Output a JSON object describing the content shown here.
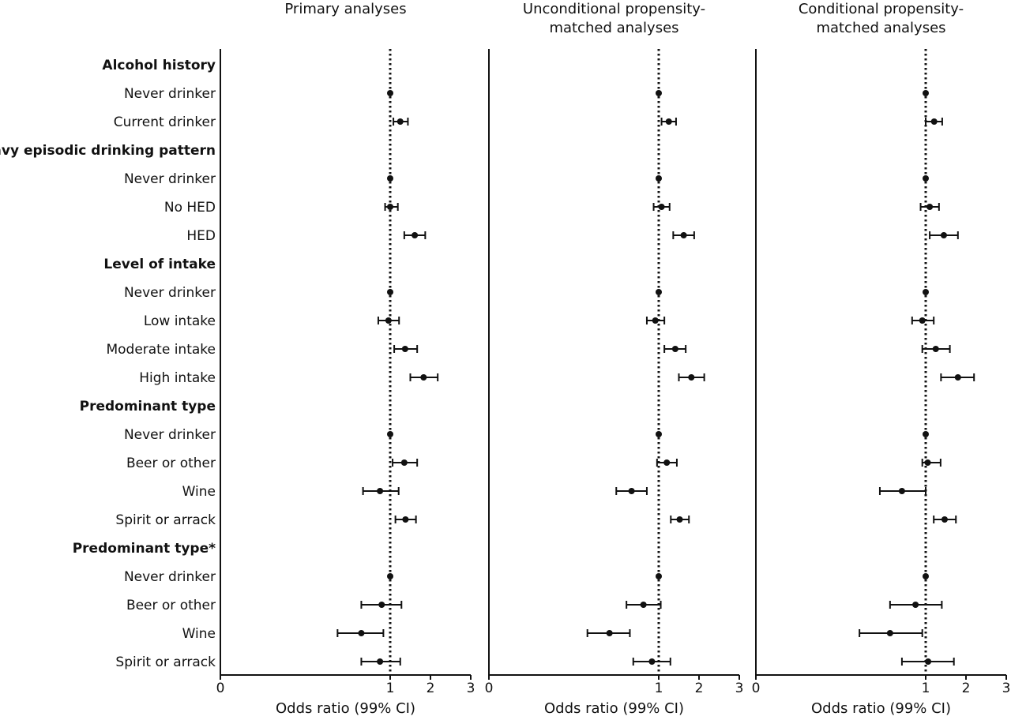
{
  "chart_data": {
    "type": "forest",
    "xlabel": "Odds ratio (99% CI)",
    "xticks": [
      0,
      1,
      2,
      3
    ],
    "xlim": [
      0,
      3
    ],
    "reference_line": 1,
    "grid": false,
    "rows": [
      {
        "label": "Alcohol history",
        "header": true
      },
      {
        "label": "Never drinker"
      },
      {
        "label": "Current drinker"
      },
      {
        "label": "Heavy episodic drinking pattern",
        "header": true
      },
      {
        "label": "Never drinker"
      },
      {
        "label": "No HED"
      },
      {
        "label": "HED"
      },
      {
        "label": "Level of intake",
        "header": true
      },
      {
        "label": "Never drinker"
      },
      {
        "label": "Low intake"
      },
      {
        "label": "Moderate intake"
      },
      {
        "label": "High intake"
      },
      {
        "label": "Predominant type",
        "header": true
      },
      {
        "label": "Never drinker"
      },
      {
        "label": "Beer or other"
      },
      {
        "label": "Wine"
      },
      {
        "label": "Spirit or arrack"
      },
      {
        "label": "Predominant type*",
        "header": true
      },
      {
        "label": "Never drinker"
      },
      {
        "label": "Beer or other"
      },
      {
        "label": "Wine"
      },
      {
        "label": "Spirit or arrack"
      }
    ],
    "panels": [
      {
        "title": [
          "Primary analyses"
        ],
        "estimates": [
          null,
          [
            1,
            1,
            1
          ],
          [
            1.25,
            1.08,
            1.44
          ],
          null,
          [
            1,
            1,
            1
          ],
          [
            1.0,
            0.97,
            1.19
          ],
          [
            1.61,
            1.35,
            1.87
          ],
          null,
          [
            1,
            1,
            1
          ],
          [
            0.99,
            0.93,
            1.22
          ],
          [
            1.37,
            1.1,
            1.67
          ],
          [
            1.83,
            1.5,
            2.18
          ],
          null,
          [
            1,
            1,
            1
          ],
          [
            1.35,
            1.06,
            1.67
          ],
          [
            0.94,
            0.84,
            1.21
          ],
          [
            1.38,
            1.13,
            1.64
          ],
          null,
          [
            1,
            1,
            1
          ],
          [
            0.95,
            0.83,
            1.28
          ],
          [
            0.83,
            0.69,
            0.96
          ],
          [
            0.94,
            0.83,
            1.25
          ]
        ]
      },
      {
        "title": [
          "Unconditional propensity-",
          "matched analyses"
        ],
        "estimates": [
          null,
          [
            1,
            1,
            1
          ],
          [
            1.25,
            1.07,
            1.43
          ],
          null,
          [
            1,
            1,
            1
          ],
          [
            1.07,
            0.97,
            1.27
          ],
          [
            1.62,
            1.36,
            1.88
          ],
          null,
          [
            1,
            1,
            1
          ],
          [
            0.98,
            0.93,
            1.14
          ],
          [
            1.41,
            1.14,
            1.67
          ],
          [
            1.81,
            1.5,
            2.13
          ],
          null,
          [
            1,
            1,
            1
          ],
          [
            1.2,
            0.99,
            1.45
          ],
          [
            0.84,
            0.75,
            0.93
          ],
          [
            1.52,
            1.3,
            1.75
          ],
          null,
          [
            1,
            1,
            1
          ],
          [
            0.91,
            0.81,
            1.05
          ],
          [
            0.71,
            0.58,
            0.83
          ],
          [
            0.96,
            0.85,
            1.29
          ]
        ]
      },
      {
        "title": [
          "Conditional propensity-",
          "matched analyses"
        ],
        "estimates": [
          null,
          [
            1,
            1,
            1
          ],
          [
            1.21,
            1.0,
            1.41
          ],
          null,
          [
            1,
            1,
            1
          ],
          [
            1.1,
            0.97,
            1.33
          ],
          [
            1.45,
            1.1,
            1.8
          ],
          null,
          [
            1,
            1,
            1
          ],
          [
            0.98,
            0.92,
            1.2
          ],
          [
            1.25,
            0.98,
            1.6
          ],
          [
            1.8,
            1.38,
            2.2
          ],
          null,
          [
            1,
            1,
            1
          ],
          [
            1.05,
            0.98,
            1.37
          ],
          [
            0.86,
            0.73,
            1.0
          ],
          [
            1.47,
            1.2,
            1.75
          ],
          null,
          [
            1,
            1,
            1
          ],
          [
            0.94,
            0.79,
            1.4
          ],
          [
            0.79,
            0.61,
            0.98
          ],
          [
            1.06,
            0.86,
            1.7
          ]
        ]
      }
    ]
  }
}
